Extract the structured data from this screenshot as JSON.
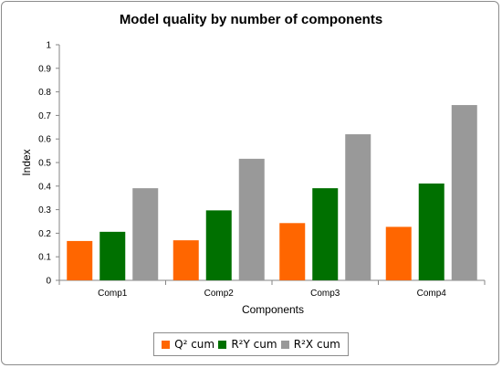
{
  "chart_data": {
    "type": "bar",
    "title": "Model quality by number of components",
    "xlabel": "Components",
    "ylabel": "Index",
    "ylim": [
      0,
      1
    ],
    "yticks": [
      "0",
      "0.1",
      "0.2",
      "0.3",
      "0.4",
      "0.5",
      "0.6",
      "0.7",
      "0.8",
      "0.9",
      "1"
    ],
    "categories": [
      "Comp1",
      "Comp2",
      "Comp3",
      "Comp4"
    ],
    "series": [
      {
        "name": "Q² cum",
        "color": "#ff6600",
        "values": [
          0.167,
          0.17,
          0.243,
          0.227
        ]
      },
      {
        "name": "R²Y cum",
        "color": "#007000",
        "values": [
          0.206,
          0.297,
          0.391,
          0.411
        ]
      },
      {
        "name": "R²X cum",
        "color": "#999999",
        "values": [
          0.391,
          0.516,
          0.62,
          0.744
        ]
      }
    ],
    "grid": false,
    "legend_position": "bottom"
  }
}
